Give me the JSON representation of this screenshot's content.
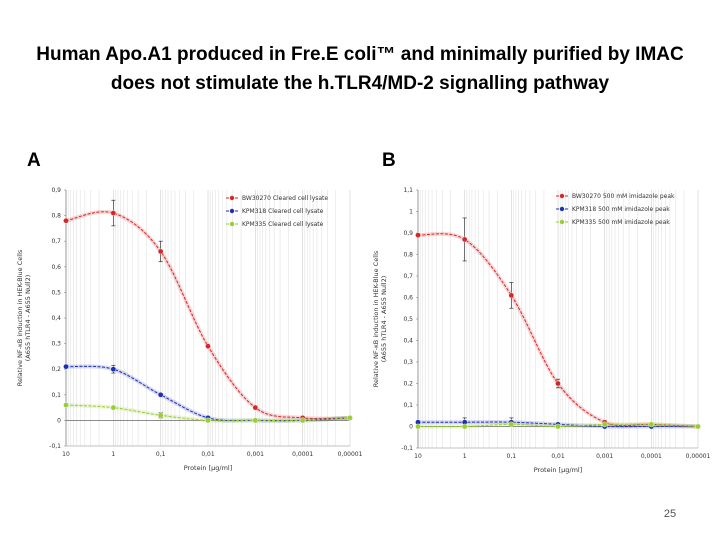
{
  "title": {
    "line1": "Human Apo.A1 produced in Fre.E coli™ and minimally purified by IMAC",
    "line2": "does not stimulate the h.TLR4/MD-2 signalling pathway"
  },
  "page_number": "25",
  "colors": {
    "red": "#d62728",
    "blue": "#1f2fb4",
    "green": "#9acd32"
  },
  "chart_data": [
    {
      "panel": "A",
      "type": "line",
      "xlabel": "Protein [µg/ml]",
      "ylabel_line1": "Relative NF-κB induction in HEK-Blue Cells",
      "ylabel_line2": "(A655 hTLR4 - A655 Null2)",
      "x_tick_labels": [
        "10",
        "1",
        "0,1",
        "0,01",
        "0,001",
        "0,0001",
        "0,00001"
      ],
      "x_log": true,
      "x_reversed": true,
      "ylim": [
        -0.1,
        0.9
      ],
      "y_tick_values": [
        -0.1,
        0,
        0.1,
        0.2,
        0.3,
        0.4,
        0.5,
        0.6,
        0.7,
        0.8,
        0.9
      ],
      "y_tick_labels": [
        "-0,1",
        "0",
        "0,1",
        "0,2",
        "0,3",
        "0,4",
        "0,5",
        "0,6",
        "0,7",
        "0,8",
        "0,9"
      ],
      "grid": true,
      "legend_position": "top-right",
      "x": [
        10,
        1,
        0.1,
        0.01,
        0.001,
        0.0001,
        1e-05
      ],
      "series": [
        {
          "name": "BW30270 Cleared cell lysate",
          "color": "#d62728",
          "values": [
            0.78,
            0.81,
            0.66,
            0.29,
            0.05,
            0.01,
            0.01
          ],
          "errors": [
            0,
            0.05,
            0.04,
            0,
            0,
            0,
            0
          ]
        },
        {
          "name": "KPM318 Cleared cell lysate",
          "color": "#1f2fb4",
          "values": [
            0.21,
            0.2,
            0.1,
            0.01,
            0.0,
            0.0,
            0.01
          ],
          "errors": [
            0,
            0.015,
            0,
            0,
            0,
            0,
            0
          ]
        },
        {
          "name": "KPM335 Cleared cell lysate",
          "color": "#9acd32",
          "values": [
            0.06,
            0.05,
            0.02,
            0.0,
            0.0,
            0.0,
            0.01
          ],
          "errors": [
            0,
            0,
            0.01,
            0,
            0,
            0,
            0
          ]
        }
      ]
    },
    {
      "panel": "B",
      "type": "line",
      "xlabel": "Protein [µg/ml]",
      "ylabel_line1": "Relative NF-κB induction in HEK-Blue Cells",
      "ylabel_line2": "(A655 hTLR4 - A655 Null2)",
      "x_tick_labels": [
        "10",
        "1",
        "0,1",
        "0,01",
        "0,001",
        "0,0001",
        "0,00001"
      ],
      "x_log": true,
      "x_reversed": true,
      "ylim": [
        -0.1,
        1.1
      ],
      "y_tick_values": [
        -0.1,
        0,
        0.1,
        0.2,
        0.3,
        0.4,
        0.5,
        0.6,
        0.7,
        0.8,
        0.9,
        1,
        1.1
      ],
      "y_tick_labels": [
        "-0,1",
        "0",
        "0,1",
        "0,2",
        "0,3",
        "0,4",
        "0,5",
        "0,6",
        "0,7",
        "0,8",
        "0,9",
        "1",
        "1,1"
      ],
      "grid": true,
      "legend_position": "top-right",
      "x": [
        10,
        1,
        0.1,
        0.01,
        0.001,
        0.0001,
        1e-05
      ],
      "series": [
        {
          "name": "BW30270 500 mM imidazole peak",
          "color": "#d62728",
          "values": [
            0.89,
            0.87,
            0.61,
            0.2,
            0.02,
            0.01,
            0.0
          ],
          "errors": [
            0,
            0.1,
            0.06,
            0.02,
            0,
            0,
            0
          ]
        },
        {
          "name": "KPM318 500 mM imidazole peak",
          "color": "#1f2fb4",
          "values": [
            0.02,
            0.02,
            0.02,
            0.01,
            0.0,
            0.0,
            0.0
          ],
          "errors": [
            0,
            0.02,
            0.02,
            0,
            0,
            0,
            0
          ]
        },
        {
          "name": "KPM335 500 mM imidazole peak",
          "color": "#9acd32",
          "values": [
            0.0,
            0.0,
            0.01,
            0.0,
            0.01,
            0.01,
            0.0
          ],
          "errors": [
            0,
            0,
            0,
            0,
            0,
            0,
            0
          ]
        }
      ]
    }
  ]
}
